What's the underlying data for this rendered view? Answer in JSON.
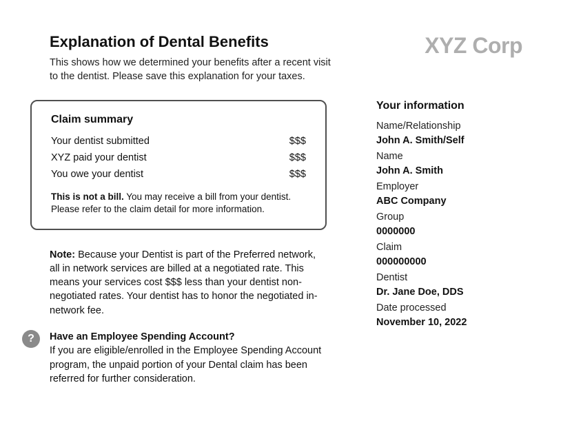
{
  "header": {
    "title": "Explanation of Dental Benefits",
    "intro": "This shows how we determined your benefits after a recent visit to the dentist. Please save this explanation for your taxes.",
    "corp_name": "XYZ Corp"
  },
  "claim_summary": {
    "title": "Claim summary",
    "rows": [
      {
        "label": "Your dentist submitted",
        "value": "$$$"
      },
      {
        "label": "XYZ paid your dentist",
        "value": "$$$"
      },
      {
        "label": "You owe your dentist",
        "value": "$$$"
      }
    ],
    "footnote_bold": "This is not a bill.",
    "footnote_rest": " You may receive a bill from your dentist. Please refer to the claim detail for more information."
  },
  "note": {
    "label": "Note:",
    "text": " Because your Dentist is part of the Preferred network, all in network services are billed at a negotiated rate. This means your services cost $$$ less than your dentist non-negotiated rates. Your dentist has to honor the negotiated in-network fee."
  },
  "esa": {
    "icon_char": "?",
    "heading": "Have an Employee Spending Account?",
    "body": "If you are eligible/enrolled in the Employee Spending Account program, the unpaid portion of your Dental claim has been referred for further consideration."
  },
  "your_info": {
    "title": "Your information",
    "fields": [
      {
        "label": "Name/Relationship",
        "value": "John A. Smith/Self"
      },
      {
        "label": "Name",
        "value": "John A. Smith"
      },
      {
        "label": "Employer",
        "value": "ABC Company"
      },
      {
        "label": "Group",
        "value": "0000000"
      },
      {
        "label": "Claim",
        "value": "000000000"
      },
      {
        "label": "Dentist",
        "value": "Dr. Jane Doe, DDS"
      },
      {
        "label": "Date processed",
        "value": "November 10, 2022"
      }
    ]
  },
  "colors": {
    "text": "#111111",
    "logo": "#aeaeae",
    "box_border": "#4f4f4f",
    "icon_bg": "#8a8a8a",
    "background": "#ffffff"
  }
}
